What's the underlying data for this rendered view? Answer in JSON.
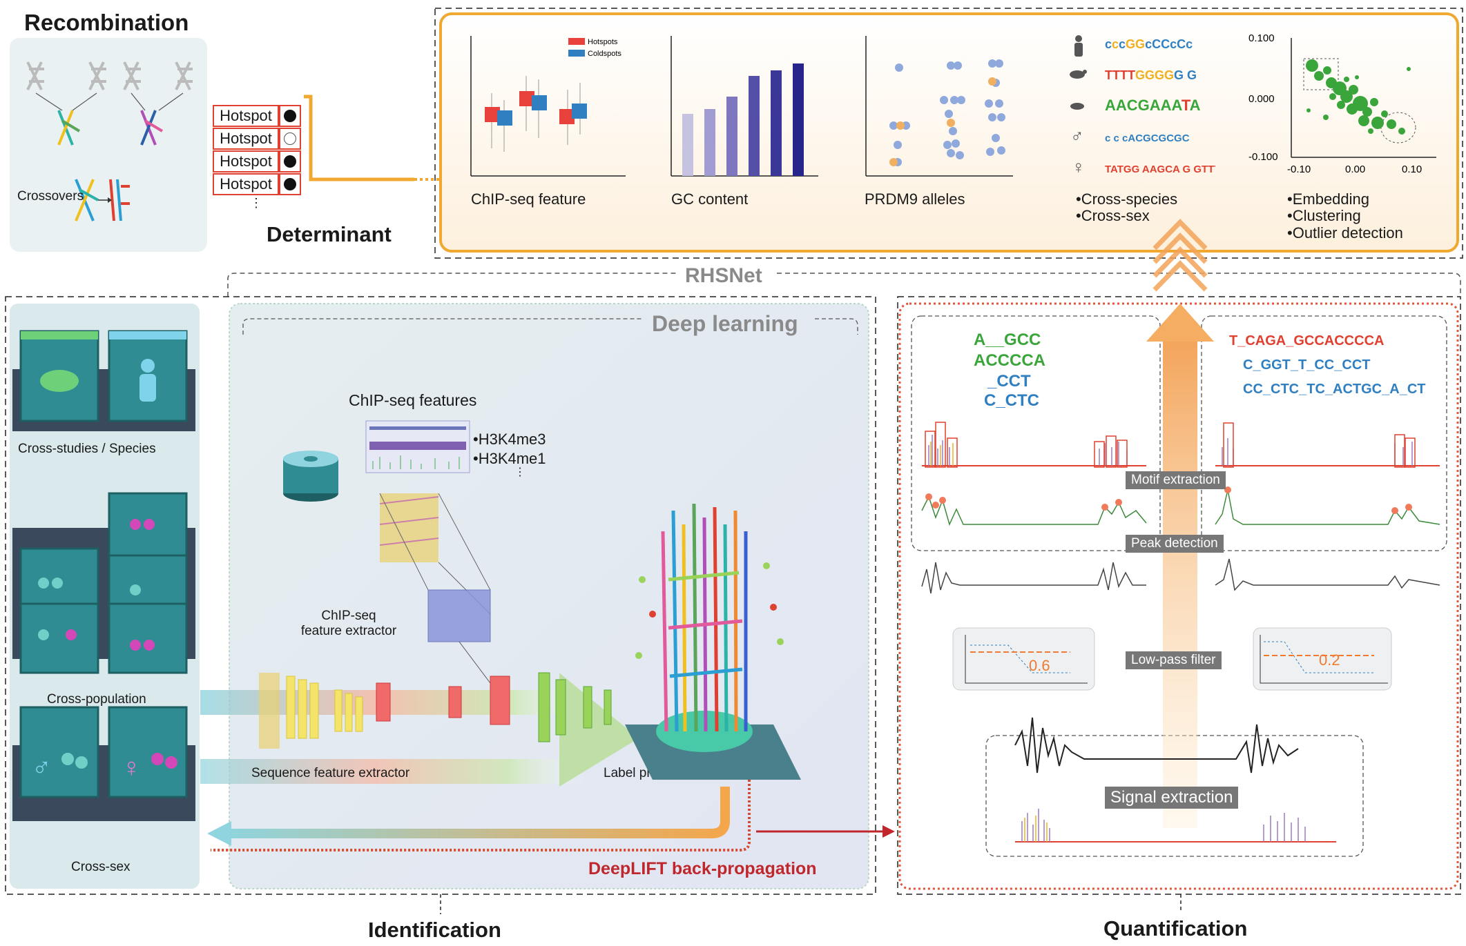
{
  "recombination": {
    "title": "Recombination",
    "crossovers_label": "Crossovers",
    "hotspot_rows": [
      {
        "label": "Hotspot",
        "marker": "filled"
      },
      {
        "label": "Hotspot",
        "marker": "open"
      },
      {
        "label": "Hotspot",
        "marker": "filled"
      },
      {
        "label": "Hotspot",
        "marker": "filled"
      }
    ],
    "ellipsis": "⋮",
    "determinant_label": "Determinant"
  },
  "determinant_panels": {
    "chipseq": {
      "caption": "ChIP-seq feature",
      "legend": [
        "Hotspots",
        "Coldspots"
      ],
      "colors": {
        "hotspots": "#e8403a",
        "coldspots": "#2f7fc1"
      }
    },
    "gc": {
      "caption": "GC content"
    },
    "prdm9": {
      "caption": "PRDM9 alleles"
    },
    "species": {
      "bullets": [
        "Cross-species",
        "Cross-sex"
      ]
    },
    "embedding": {
      "bullets": [
        "Embedding",
        "Clustering",
        "Outlier detection"
      ],
      "y_ticks": [
        "0.100",
        "0.000",
        "-0.100"
      ],
      "x_ticks": [
        "-0.10",
        "0.00",
        "0.10"
      ]
    }
  },
  "rhsnet": {
    "label": "RHSNet"
  },
  "deep_learning": {
    "title": "Deep learning",
    "chipseq_features_title": "ChIP-seq features",
    "marks": [
      "H3K4me3",
      "H3K4me1"
    ],
    "marks_ellipsis": "⋮",
    "chipseq_extractor": "ChIP-seq\nfeature extractor",
    "sequence_extractor": "Sequence feature extractor",
    "label_predictor": "Label predictor",
    "deeplift": "DeepLIFT back-propagation"
  },
  "datasets": {
    "cross_studies": "Cross-studies / Species",
    "cross_population": "Cross-population",
    "cross_sex": "Cross-sex"
  },
  "quantification": {
    "logos_left": [
      "A__GCC",
      "ACCCCA",
      "_CCT",
      "C_CTC"
    ],
    "logos_right": [
      "T_CAGA_GCCACCCCA",
      "C_GGT_T_CC_CCT",
      "CC_CTC_TC_ACTGC_A_CT"
    ],
    "motif_extraction": "Motif extraction",
    "peak_detection": "Peak detection",
    "low_pass_filter": "Low-pass filter",
    "signal_extraction": "Signal extraction",
    "threshold_left": "0.6",
    "threshold_right": "0.2"
  },
  "bottom": {
    "identification": "Identification",
    "quantification": "Quantification"
  },
  "colors": {
    "accent_orange": "#f0a830",
    "accent_red": "#c0272d",
    "hotspot_red": "#e0402f",
    "pill_gray": "#777777"
  }
}
